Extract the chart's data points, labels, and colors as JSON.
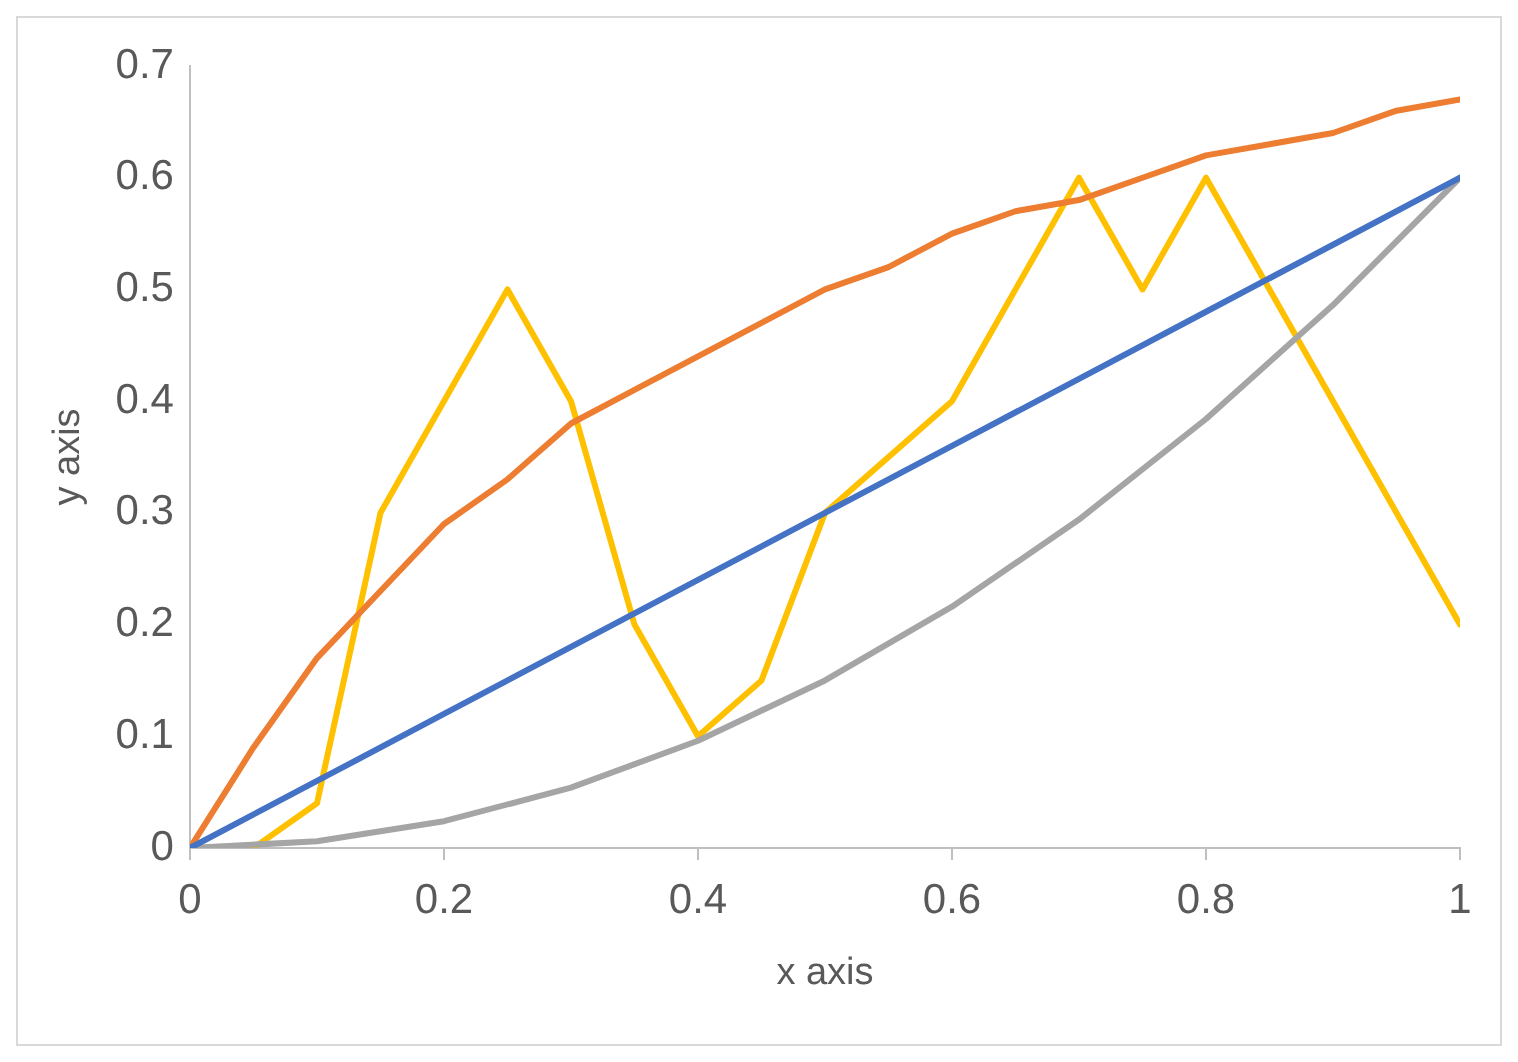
{
  "chart_data": {
    "type": "line",
    "xlabel": "x axis",
    "ylabel": "y axis",
    "xlim": [
      0,
      1
    ],
    "ylim": [
      0,
      0.7
    ],
    "xticks": [
      0,
      0.2,
      0.4,
      0.6,
      0.8,
      1
    ],
    "yticks": [
      0,
      0.1,
      0.2,
      0.3,
      0.4,
      0.5,
      0.6,
      0.7
    ],
    "grid": false,
    "legend": false,
    "marker": "none",
    "line_style": "solid",
    "series": [
      {
        "color": "#4472c4",
        "x": [
          0,
          0.1,
          0.2,
          0.3,
          0.4,
          0.5,
          0.6,
          0.7,
          0.8,
          0.9,
          1
        ],
        "values": [
          0,
          0.06,
          0.12,
          0.18,
          0.24,
          0.3,
          0.36,
          0.42,
          0.48,
          0.54,
          0.6
        ]
      },
      {
        "color": "#ed7d31",
        "x": [
          0,
          0.05,
          0.1,
          0.15,
          0.2,
          0.25,
          0.3,
          0.35,
          0.4,
          0.45,
          0.5,
          0.55,
          0.6,
          0.65,
          0.7,
          0.75,
          0.8,
          0.85,
          0.9,
          0.95,
          1
        ],
        "values": [
          0,
          0.09,
          0.17,
          0.23,
          0.29,
          0.33,
          0.38,
          0.41,
          0.44,
          0.47,
          0.5,
          0.52,
          0.55,
          0.57,
          0.58,
          0.6,
          0.62,
          0.63,
          0.64,
          0.66,
          0.67
        ]
      },
      {
        "color": "#a5a5a5",
        "x": [
          0,
          0.1,
          0.2,
          0.3,
          0.4,
          0.5,
          0.6,
          0.7,
          0.8,
          0.9,
          1
        ],
        "values": [
          0,
          0.006,
          0.024,
          0.054,
          0.096,
          0.15,
          0.216,
          0.294,
          0.384,
          0.486,
          0.6
        ]
      },
      {
        "color": "#ffc000",
        "x": [
          0,
          0.05,
          0.1,
          0.15,
          0.25,
          0.3,
          0.35,
          0.4,
          0.45,
          0.5,
          0.6,
          0.7,
          0.75,
          0.8,
          1
        ],
        "values": [
          0,
          0,
          0.04,
          0.3,
          0.5,
          0.4,
          0.2,
          0.1,
          0.15,
          0.3,
          0.4,
          0.6,
          0.5,
          0.6,
          0.2
        ]
      }
    ]
  }
}
